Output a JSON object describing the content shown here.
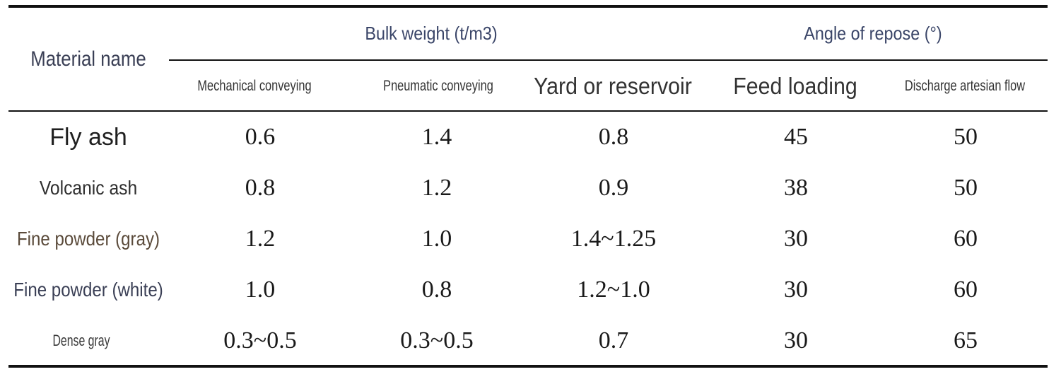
{
  "table": {
    "header": {
      "material_name": "Material name",
      "bulk_weight": "Bulk weight (t/m3)",
      "angle_of_repose": "Angle of repose (°)",
      "columns": [
        "Mechanical conveying",
        "Pneumatic conveying",
        "Yard or reservoir",
        "Feed loading",
        "Discharge artesian flow"
      ]
    },
    "rows": [
      {
        "name": "Fly ash",
        "values": [
          "0.6",
          "1.4",
          "0.8",
          "45",
          "50"
        ]
      },
      {
        "name": "Volcanic ash",
        "values": [
          "0.8",
          "1.2",
          "0.9",
          "38",
          "50"
        ]
      },
      {
        "name": "Fine powder (gray)",
        "values": [
          "1.2",
          "1.0",
          "1.4~1.25",
          "30",
          "60"
        ]
      },
      {
        "name": "Fine powder (white)",
        "values": [
          "1.0",
          "0.8",
          "1.2~1.0",
          "30",
          "60"
        ]
      },
      {
        "name": "Dense gray",
        "values": [
          "0.3~0.5",
          "0.3~0.5",
          "0.7",
          "30",
          "65"
        ]
      }
    ]
  }
}
